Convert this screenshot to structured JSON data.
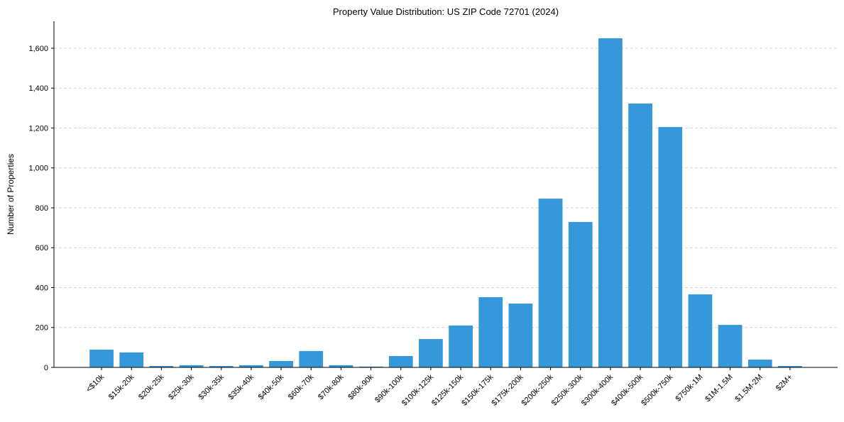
{
  "chart_data": {
    "type": "bar",
    "title": "Property Value Distribution: US ZIP Code 72701 (2024)",
    "xlabel": "",
    "ylabel": "Number of Properties",
    "ylim": [
      0,
      1735
    ],
    "yticks": [
      0,
      200,
      400,
      600,
      800,
      1000,
      1200,
      1400,
      1600
    ],
    "ytick_labels": [
      "0",
      "200",
      "400",
      "600",
      "800",
      "1,000",
      "1,200",
      "1,400",
      "1,600"
    ],
    "grid": "y-dashed",
    "bar_color": "#3498db",
    "categories": [
      "<$10k",
      "$15k-20k",
      "$20k-25k",
      "$25k-30k",
      "$30k-35k",
      "$35k-40k",
      "$40k-50k",
      "$60k-70k",
      "$70k-80k",
      "$80k-90k",
      "$90k-100k",
      "$100k-125k",
      "$125k-150k",
      "$150k-175k",
      "$175k-200k",
      "$200k-250k",
      "$250k-300k",
      "$300k-400k",
      "$400k-500k",
      "$500k-750k",
      "$750k-1M",
      "$1M-1.5M",
      "$1.5M-2M",
      "$2M+"
    ],
    "values": [
      89,
      75,
      7,
      11,
      7,
      11,
      32,
      82,
      11,
      4,
      57,
      142,
      210,
      352,
      320,
      846,
      729,
      1650,
      1323,
      1205,
      366,
      213,
      39,
      7
    ]
  }
}
